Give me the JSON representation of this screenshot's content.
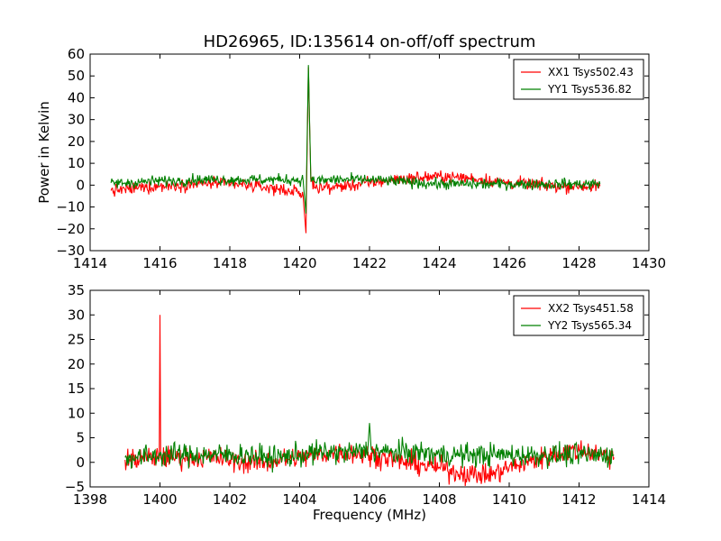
{
  "figure": {
    "title": "HD26965, ID:135614 on-off/off spectrum",
    "xlabel": "Frequency (MHz)",
    "ylabel": "Power in Kelvin"
  },
  "colors": {
    "xx": "#ff0000",
    "yy": "#008000",
    "axis": "#000000",
    "background": "#ffffff"
  },
  "chart_data": [
    {
      "type": "line",
      "title": "HD26965, ID:135614 on-off/off spectrum",
      "xlabel": "",
      "ylabel": "Power in Kelvin",
      "xlim": [
        1414,
        1430
      ],
      "ylim": [
        -30,
        60
      ],
      "xticks": [
        1414,
        1416,
        1418,
        1420,
        1422,
        1424,
        1426,
        1428,
        1430
      ],
      "yticks": [
        -30,
        -20,
        -10,
        0,
        10,
        20,
        30,
        40,
        50,
        60
      ],
      "grid": false,
      "legend": "top-right",
      "series": [
        {
          "name": "XX1 Tsys502.43",
          "color": "#ff0000",
          "x": [
            1414.6,
            1415.0,
            1415.5,
            1416.0,
            1416.5,
            1417.0,
            1417.5,
            1418.0,
            1418.5,
            1419.0,
            1419.5,
            1419.9,
            1420.1,
            1420.18,
            1420.25,
            1420.32,
            1420.5,
            1421.0,
            1421.5,
            1422.0,
            1422.5,
            1423.0,
            1423.5,
            1424.0,
            1424.5,
            1425.0,
            1425.5,
            1426.0,
            1426.5,
            1427.0,
            1427.5,
            1428.0,
            1428.6
          ],
          "y": [
            -2.5,
            -2,
            -1,
            -0.5,
            0,
            0.5,
            1,
            0.5,
            0,
            -1,
            -2,
            -3,
            -5,
            -22,
            54,
            2,
            -1,
            -1,
            0,
            1,
            2,
            3,
            3.5,
            4,
            3.5,
            3,
            2,
            1,
            0.5,
            0,
            -0.5,
            -0.5,
            -0.5
          ],
          "noise": 2.0
        },
        {
          "name": "YY1 Tsys536.82",
          "color": "#008000",
          "x": [
            1414.6,
            1415.0,
            1415.5,
            1416.0,
            1416.5,
            1417.0,
            1417.5,
            1418.0,
            1418.5,
            1419.0,
            1419.5,
            1419.9,
            1420.1,
            1420.18,
            1420.25,
            1420.32,
            1420.5,
            1421.0,
            1421.5,
            1422.0,
            1422.5,
            1423.0,
            1423.5,
            1424.0,
            1424.5,
            1425.0,
            1425.5,
            1426.0,
            1426.5,
            1427.0,
            1427.5,
            1428.0,
            1428.6
          ],
          "y": [
            1,
            1,
            1.5,
            2,
            2,
            2.5,
            2.5,
            2.5,
            2.5,
            2.5,
            2.5,
            2.5,
            2,
            -13,
            55,
            3,
            2,
            2.5,
            2.5,
            2.5,
            2,
            1.5,
            1,
            0.5,
            0.5,
            0.5,
            0.5,
            0.5,
            0.5,
            0.5,
            0.5,
            0.5,
            0.5
          ],
          "noise": 1.8
        }
      ]
    },
    {
      "type": "line",
      "title": "",
      "xlabel": "Frequency (MHz)",
      "ylabel": "",
      "xlim": [
        1398,
        1414
      ],
      "ylim": [
        -5,
        35
      ],
      "xticks": [
        1398,
        1400,
        1402,
        1404,
        1406,
        1408,
        1410,
        1412,
        1414
      ],
      "yticks": [
        -5,
        0,
        5,
        10,
        15,
        20,
        25,
        30,
        35
      ],
      "grid": false,
      "legend": "top-right",
      "series": [
        {
          "name": "XX2 Tsys451.58",
          "color": "#ff0000",
          "x": [
            1399.0,
            1399.5,
            1399.98,
            1400.0,
            1400.02,
            1400.5,
            1401.0,
            1401.5,
            1402.0,
            1402.5,
            1403.0,
            1403.5,
            1404.0,
            1404.5,
            1405.0,
            1405.5,
            1406.0,
            1406.5,
            1407.0,
            1407.5,
            1408.0,
            1408.5,
            1409.0,
            1409.5,
            1410.0,
            1410.5,
            1411.0,
            1411.5,
            1412.0,
            1412.5,
            1413.0
          ],
          "y": [
            0.5,
            0.8,
            1,
            30,
            1,
            1,
            1,
            1,
            0.5,
            0,
            0,
            0.5,
            1,
            1.5,
            2,
            2,
            1.5,
            1,
            0,
            -0.5,
            -1,
            -2,
            -2.5,
            -2.5,
            -1,
            0,
            1,
            2,
            2.5,
            2,
            1
          ],
          "noise": 1.6
        },
        {
          "name": "YY2 Tsys565.34",
          "color": "#008000",
          "x": [
            1399.0,
            1399.5,
            1400.0,
            1400.5,
            1401.0,
            1401.5,
            1402.0,
            1402.5,
            1403.0,
            1403.5,
            1404.0,
            1404.5,
            1405.0,
            1405.5,
            1405.95,
            1406.0,
            1406.05,
            1406.5,
            1407.0,
            1407.5,
            1408.0,
            1408.5,
            1409.0,
            1409.5,
            1410.0,
            1410.5,
            1411.0,
            1411.5,
            1412.0,
            1412.5,
            1413.0
          ],
          "y": [
            1,
            1,
            1.5,
            1.5,
            1.5,
            1.5,
            1.5,
            1.5,
            1,
            1,
            1.5,
            2,
            2,
            2,
            2.5,
            8,
            2.5,
            2,
            2,
            2,
            1.5,
            1.5,
            1.5,
            1.5,
            1.5,
            1.5,
            1.5,
            1.5,
            1.5,
            1.5,
            1.5
          ],
          "noise": 1.7
        }
      ]
    }
  ]
}
